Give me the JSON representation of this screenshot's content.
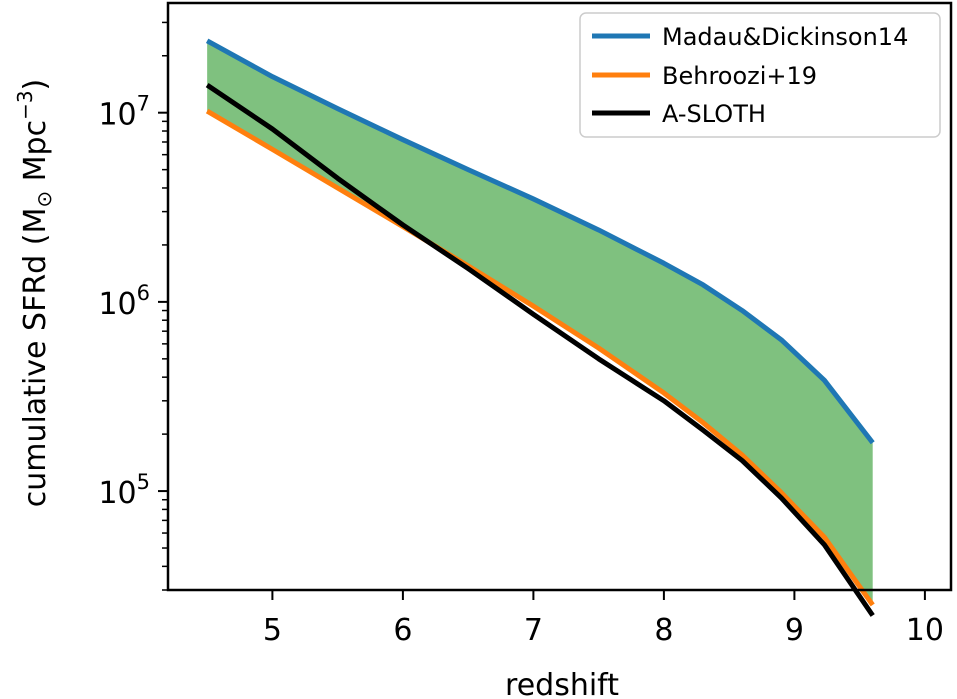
{
  "chart_data": {
    "type": "line",
    "x_axis": {
      "label": "redshift",
      "range": [
        4.2,
        10.2
      ],
      "ticks": [
        5,
        6,
        7,
        8,
        9,
        10
      ],
      "tick_labels": [
        "5",
        "6",
        "7",
        "8",
        "9",
        "10"
      ]
    },
    "y_axis": {
      "label_main": "cumulative SFRd (M",
      "label_sun": "⊙",
      "label_unit": " Mpc",
      "label_exp": "−3",
      "label_close": ")",
      "scale": "log",
      "range": [
        30000,
        38000000
      ],
      "major_ticks": [
        {
          "value": 100000,
          "base": "10",
          "exp": "5"
        },
        {
          "value": 1000000,
          "base": "10",
          "exp": "6"
        },
        {
          "value": 10000000,
          "base": "10",
          "exp": "7"
        }
      ]
    },
    "fill_between": {
      "color": "#7fc17f",
      "between": [
        "Madau&Dickinson14",
        "Behroozi+19"
      ]
    },
    "series": [
      {
        "name": "Madau&Dickinson14",
        "color": "#1f77b4",
        "x": [
          4.5,
          5.0,
          5.5,
          6.0,
          6.5,
          7.0,
          7.5,
          8.0,
          8.3,
          8.6,
          8.9,
          9.23,
          9.6
        ],
        "y": [
          24000000,
          15500000,
          10500000,
          7200000,
          5000000,
          3500000,
          2400000,
          1600000,
          1230000,
          900000,
          630000,
          385000,
          180000
        ]
      },
      {
        "name": "Behroozi+19",
        "color": "#ff7f0e",
        "x": [
          4.5,
          5.0,
          5.5,
          6.0,
          6.5,
          7.0,
          7.5,
          8.0,
          8.3,
          8.6,
          8.9,
          9.23,
          9.6
        ],
        "y": [
          10200000,
          6400000,
          4000000,
          2500000,
          1550000,
          950000,
          570000,
          330000,
          230000,
          155000,
          98000,
          57000,
          25000
        ]
      },
      {
        "name": "A-SLOTH",
        "color": "#000000",
        "x": [
          4.5,
          5.0,
          5.5,
          6.0,
          6.5,
          7.0,
          7.5,
          8.0,
          8.3,
          8.6,
          8.9,
          9.23,
          9.6
        ],
        "y": [
          14000000,
          8200000,
          4500000,
          2550000,
          1500000,
          860000,
          500000,
          300000,
          210000,
          145000,
          92000,
          52000,
          22000
        ]
      }
    ],
    "legend": {
      "position": "top-right",
      "entries": [
        "Madau&Dickinson14",
        "Behroozi+19",
        "A-SLOTH"
      ]
    }
  }
}
